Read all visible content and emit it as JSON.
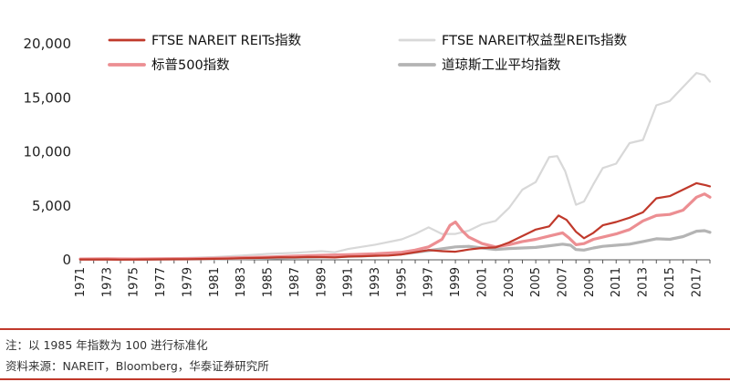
{
  "chart_data": {
    "type": "line",
    "ylim": [
      0,
      20000
    ],
    "yticks": [
      "0",
      "5,000",
      "10,000",
      "15,000",
      "20,000"
    ],
    "ytick_values": [
      0,
      5000,
      10000,
      15000,
      20000
    ],
    "xlim": [
      1971,
      2018
    ],
    "xtick_labels": [
      "1971",
      "1973",
      "1975",
      "1977",
      "1979",
      "1981",
      "1983",
      "1985",
      "1987",
      "1989",
      "1991",
      "1993",
      "1995",
      "1997",
      "1999",
      "2001",
      "2003",
      "2005",
      "2007",
      "2009",
      "2011",
      "2013",
      "2015",
      "2017"
    ],
    "legend_placement": "top",
    "grid": false,
    "series": [
      {
        "name": "FTSE NAREIT REITs指数",
        "color": "#c0392b",
        "width": 2.2,
        "points": [
          [
            1971,
            30
          ],
          [
            1972,
            35
          ],
          [
            1973,
            30
          ],
          [
            1974,
            20
          ],
          [
            1975,
            25
          ],
          [
            1976,
            35
          ],
          [
            1977,
            45
          ],
          [
            1978,
            50
          ],
          [
            1979,
            60
          ],
          [
            1980,
            80
          ],
          [
            1981,
            90
          ],
          [
            1982,
            110
          ],
          [
            1983,
            150
          ],
          [
            1984,
            170
          ],
          [
            1985,
            200
          ],
          [
            1986,
            240
          ],
          [
            1987,
            230
          ],
          [
            1988,
            260
          ],
          [
            1989,
            250
          ],
          [
            1990,
            220
          ],
          [
            1991,
            300
          ],
          [
            1992,
            330
          ],
          [
            1993,
            380
          ],
          [
            1994,
            400
          ],
          [
            1995,
            500
          ],
          [
            1996,
            700
          ],
          [
            1997,
            900
          ],
          [
            1998,
            800
          ],
          [
            1999,
            750
          ],
          [
            2000,
            950
          ],
          [
            2001,
            1100
          ],
          [
            2002,
            1150
          ],
          [
            2003,
            1600
          ],
          [
            2004,
            2200
          ],
          [
            2005,
            2800
          ],
          [
            2006,
            3100
          ],
          [
            2006.7,
            4100
          ],
          [
            2007.3,
            3700
          ],
          [
            2008,
            2600
          ],
          [
            2008.6,
            2000
          ],
          [
            2009.3,
            2500
          ],
          [
            2010,
            3200
          ],
          [
            2011,
            3500
          ],
          [
            2012,
            3900
          ],
          [
            2013,
            4400
          ],
          [
            2014,
            5700
          ],
          [
            2015,
            5900
          ],
          [
            2016,
            6500
          ],
          [
            2017,
            7100
          ],
          [
            2017.7,
            6900
          ],
          [
            2018,
            6800
          ]
        ]
      },
      {
        "name": "FTSE NAREIT权益型REITs指数",
        "color": "#d8d8d8",
        "width": 2.2,
        "points": [
          [
            1971,
            40
          ],
          [
            1973,
            60
          ],
          [
            1975,
            80
          ],
          [
            1977,
            120
          ],
          [
            1979,
            180
          ],
          [
            1981,
            250
          ],
          [
            1983,
            400
          ],
          [
            1985,
            550
          ],
          [
            1987,
            650
          ],
          [
            1989,
            800
          ],
          [
            1990,
            700
          ],
          [
            1991,
            1000
          ],
          [
            1993,
            1400
          ],
          [
            1995,
            1900
          ],
          [
            1996,
            2400
          ],
          [
            1997,
            3000
          ],
          [
            1998,
            2400
          ],
          [
            1999,
            2400
          ],
          [
            2000,
            2700
          ],
          [
            2001,
            3300
          ],
          [
            2002,
            3600
          ],
          [
            2003,
            4800
          ],
          [
            2004,
            6500
          ],
          [
            2005,
            7200
          ],
          [
            2006,
            9500
          ],
          [
            2006.6,
            9600
          ],
          [
            2007.2,
            8200
          ],
          [
            2008,
            5100
          ],
          [
            2008.6,
            5400
          ],
          [
            2009.3,
            7000
          ],
          [
            2010,
            8500
          ],
          [
            2011,
            8900
          ],
          [
            2012,
            10800
          ],
          [
            2013,
            11100
          ],
          [
            2014,
            14300
          ],
          [
            2015,
            14700
          ],
          [
            2016,
            16000
          ],
          [
            2017,
            17300
          ],
          [
            2017.6,
            17100
          ],
          [
            2018,
            16500
          ]
        ]
      },
      {
        "name": "标普500指数",
        "color": "#ec8e92",
        "width": 3.2,
        "points": [
          [
            1971,
            80
          ],
          [
            1973,
            90
          ],
          [
            1975,
            80
          ],
          [
            1977,
            90
          ],
          [
            1979,
            110
          ],
          [
            1981,
            140
          ],
          [
            1983,
            200
          ],
          [
            1985,
            250
          ],
          [
            1987,
            350
          ],
          [
            1989,
            420
          ],
          [
            1991,
            480
          ],
          [
            1993,
            560
          ],
          [
            1995,
            700
          ],
          [
            1996,
            900
          ],
          [
            1997,
            1200
          ],
          [
            1998,
            1900
          ],
          [
            1998.6,
            3200
          ],
          [
            1999,
            3500
          ],
          [
            1999.5,
            2700
          ],
          [
            2000,
            2100
          ],
          [
            2001,
            1500
          ],
          [
            2002,
            1200
          ],
          [
            2003,
            1400
          ],
          [
            2004,
            1700
          ],
          [
            2005,
            1900
          ],
          [
            2006,
            2200
          ],
          [
            2007,
            2500
          ],
          [
            2007.5,
            2000
          ],
          [
            2008,
            1400
          ],
          [
            2008.6,
            1500
          ],
          [
            2009.3,
            1900
          ],
          [
            2010,
            2100
          ],
          [
            2011,
            2400
          ],
          [
            2012,
            2800
          ],
          [
            2013,
            3600
          ],
          [
            2014,
            4100
          ],
          [
            2015,
            4200
          ],
          [
            2016,
            4600
          ],
          [
            2017,
            5800
          ],
          [
            2017.6,
            6100
          ],
          [
            2018,
            5800
          ]
        ]
      },
      {
        "name": "道琼斯工业平均指数",
        "color": "#b4b4b4",
        "width": 3.2,
        "points": [
          [
            1971,
            60
          ],
          [
            1973,
            60
          ],
          [
            1975,
            50
          ],
          [
            1977,
            70
          ],
          [
            1979,
            70
          ],
          [
            1981,
            90
          ],
          [
            1983,
            120
          ],
          [
            1985,
            150
          ],
          [
            1987,
            220
          ],
          [
            1989,
            260
          ],
          [
            1991,
            320
          ],
          [
            1993,
            400
          ],
          [
            1995,
            550
          ],
          [
            1997,
            850
          ],
          [
            1999,
            1200
          ],
          [
            2000,
            1250
          ],
          [
            2001,
            1100
          ],
          [
            2002,
            950
          ],
          [
            2003,
            1050
          ],
          [
            2004,
            1100
          ],
          [
            2005,
            1150
          ],
          [
            2006,
            1300
          ],
          [
            2007,
            1450
          ],
          [
            2007.6,
            1350
          ],
          [
            2008,
            950
          ],
          [
            2008.6,
            900
          ],
          [
            2009.3,
            1100
          ],
          [
            2010,
            1250
          ],
          [
            2011,
            1350
          ],
          [
            2012,
            1450
          ],
          [
            2013,
            1700
          ],
          [
            2014,
            1950
          ],
          [
            2015,
            1900
          ],
          [
            2016,
            2150
          ],
          [
            2017,
            2650
          ],
          [
            2017.6,
            2700
          ],
          [
            2018,
            2550
          ]
        ]
      }
    ]
  },
  "footer": {
    "note": "注：以 1985 年指数为 100 进行标准化",
    "source": "资料来源：NAREIT，Bloomberg，华泰证券研究所"
  },
  "colors": {
    "footer_rule": "#c0392b",
    "axis": "#555555"
  }
}
